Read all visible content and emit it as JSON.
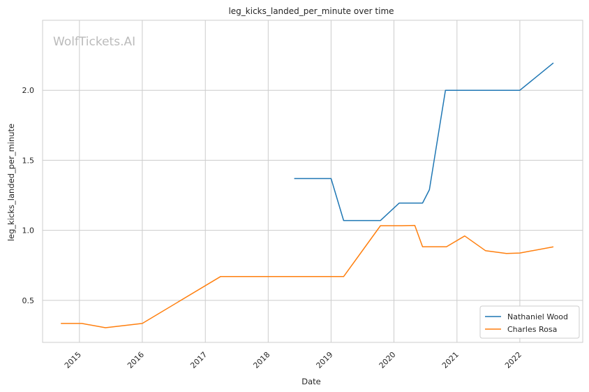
{
  "chart_data": {
    "type": "line",
    "title": "leg_kicks_landed_per_minute over time",
    "xlabel": "Date",
    "ylabel": "leg_kicks_landed_per_minute",
    "watermark": "WolfTickets.AI",
    "xlim": [
      "2014-06-01",
      "2023-01-01"
    ],
    "ylim": [
      0.2,
      2.5
    ],
    "x_ticks": [
      "2015-01-01",
      "2016-01-01",
      "2017-01-01",
      "2018-01-01",
      "2019-01-01",
      "2020-01-01",
      "2021-01-01",
      "2022-01-01"
    ],
    "x_tick_labels": [
      "2015",
      "2016",
      "2017",
      "2018",
      "2019",
      "2020",
      "2021",
      "2022"
    ],
    "y_ticks": [
      0.5,
      1.0,
      1.5,
      2.0
    ],
    "y_tick_labels": [
      "0.5",
      "1.0",
      "1.5",
      "2.0"
    ],
    "grid": true,
    "legend_position": "lower-right",
    "series": [
      {
        "name": "Nathaniel Wood",
        "color": "#1f77b4",
        "points": [
          [
            "2018-06-01",
            1.37
          ],
          [
            "2019-01-01",
            1.37
          ],
          [
            "2019-03-15",
            1.07
          ],
          [
            "2019-10-15",
            1.07
          ],
          [
            "2020-02-01",
            1.195
          ],
          [
            "2020-06-15",
            1.195
          ],
          [
            "2020-07-25",
            1.29
          ],
          [
            "2020-10-26",
            2.0
          ],
          [
            "2022-01-01",
            2.0
          ],
          [
            "2022-07-15",
            2.195
          ]
        ]
      },
      {
        "name": "Charles Rosa",
        "color": "#ff7f0e",
        "points": [
          [
            "2014-09-15",
            0.335
          ],
          [
            "2015-01-15",
            0.335
          ],
          [
            "2015-06-01",
            0.305
          ],
          [
            "2016-01-01",
            0.335
          ],
          [
            "2017-03-30",
            0.67
          ],
          [
            "2019-03-15",
            0.67
          ],
          [
            "2019-10-15",
            1.033
          ],
          [
            "2020-02-15",
            1.033
          ],
          [
            "2020-05-01",
            1.035
          ],
          [
            "2020-06-15",
            0.883
          ],
          [
            "2020-11-01",
            0.883
          ],
          [
            "2021-02-15",
            0.96
          ],
          [
            "2021-06-15",
            0.855
          ],
          [
            "2021-10-15",
            0.835
          ],
          [
            "2022-01-01",
            0.838
          ],
          [
            "2022-07-15",
            0.882
          ]
        ]
      }
    ]
  }
}
